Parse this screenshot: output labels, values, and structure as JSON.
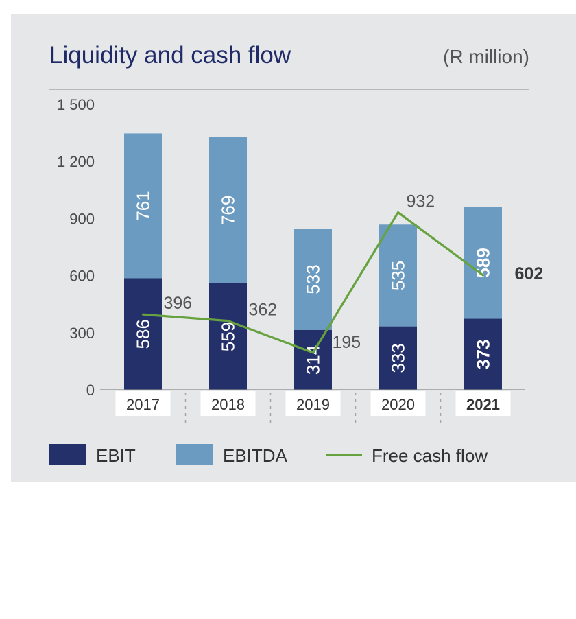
{
  "header": {
    "title": "Liquidity and cash flow",
    "unit": "(R million)"
  },
  "chart_data": {
    "type": "bar",
    "stacked": true,
    "title": "Liquidity and cash flow",
    "unit": "(R million)",
    "categories": [
      "2017",
      "2018",
      "2019",
      "2020",
      "2021"
    ],
    "highlight_category": "2021",
    "ylim": [
      0,
      1500
    ],
    "y_ticks": [
      0,
      300,
      600,
      900,
      1200,
      1500
    ],
    "y_tick_labels": [
      "0",
      "300",
      "600",
      "900",
      "1 200",
      "1 500"
    ],
    "series": [
      {
        "name": "EBIT",
        "kind": "bar",
        "color": "#24306a",
        "values": [
          586,
          559,
          314,
          333,
          373
        ]
      },
      {
        "name": "EBITDA",
        "kind": "bar",
        "color": "#6b9bc0",
        "values": [
          761,
          769,
          533,
          535,
          589
        ]
      },
      {
        "name": "Free cash flow",
        "kind": "line",
        "color": "#66a23d",
        "values": [
          396,
          362,
          195,
          932,
          602
        ]
      }
    ],
    "legend_position": "bottom",
    "grid": false
  }
}
